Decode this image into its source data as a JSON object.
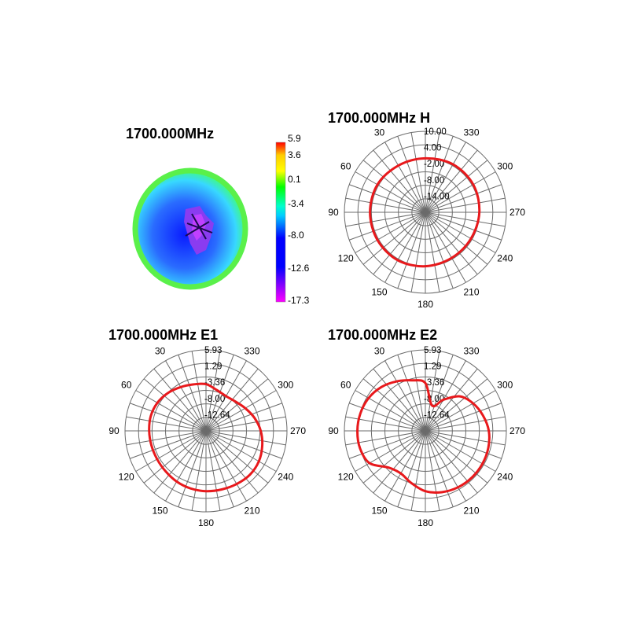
{
  "chart_data": [
    {
      "type": "heatmap",
      "title": "1700.000MHz",
      "colorbar": {
        "labels": [
          "5.9",
          "3.6",
          "0.1",
          "-3.4",
          "-8.0",
          "-12.6",
          "-17.3"
        ],
        "values": [
          5.9,
          3.6,
          0.1,
          -3.4,
          -8.0,
          -12.6,
          -17.3
        ],
        "colors": [
          "#ff0000",
          "#ffff00",
          "#00ff00",
          "#00ffff",
          "#0000ff",
          "#ff00ff"
        ]
      }
    },
    {
      "type": "polar",
      "title": "1700.000MHz  H",
      "angle_labels": [
        "30",
        "60",
        "90",
        "120",
        "150",
        "180",
        "210",
        "240",
        "270",
        "300",
        "330"
      ],
      "radial_labels": [
        "10.00",
        "4.00",
        "-2.00",
        "-8.00",
        "-14.00"
      ],
      "rlim": [
        -20,
        10
      ],
      "trace_color": "#e8191c",
      "series": [
        {
          "theta": [
            0,
            30,
            60,
            90,
            120,
            150,
            180,
            210,
            240,
            270,
            300,
            330
          ],
          "r": [
            0.0,
            0.0,
            0.5,
            0.5,
            0.5,
            0.5,
            0.0,
            -0.5,
            -0.5,
            0.0,
            0.5,
            0.5
          ]
        }
      ]
    },
    {
      "type": "polar",
      "title": "1700.000MHz  E1",
      "angle_labels": [
        "30",
        "60",
        "90",
        "120",
        "150",
        "180",
        "210",
        "240",
        "270",
        "300",
        "330"
      ],
      "radial_labels": [
        "5.93",
        "1.29",
        "-3.36",
        "-8.00",
        "-12.64"
      ],
      "rlim": [
        -17.3,
        5.93
      ],
      "trace_color": "#e8191c",
      "series": [
        {
          "theta": [
            0,
            15,
            30,
            45,
            60,
            75,
            90,
            105,
            120,
            135,
            150,
            165,
            180,
            195,
            210,
            225,
            240,
            255,
            270,
            285,
            300,
            315,
            330,
            345
          ],
          "r": [
            -3.9,
            -3.5,
            -2.8,
            -1.9,
            -1.2,
            -0.9,
            -1.0,
            -1.1,
            -1.1,
            -0.9,
            -0.5,
            -0.2,
            0.0,
            0.1,
            0.3,
            0.5,
            0.2,
            -0.6,
            -1.6,
            -2.9,
            -4.3,
            -5.4,
            -5.8,
            -5.2
          ]
        }
      ]
    },
    {
      "type": "polar",
      "title": "1700.000MHz  E2",
      "angle_labels": [
        "30",
        "60",
        "90",
        "120",
        "150",
        "180",
        "210",
        "240",
        "270",
        "300",
        "330"
      ],
      "radial_labels": [
        "5.93",
        "1.29",
        "-3.36",
        "-8.00",
        "-12.64"
      ],
      "rlim": [
        -17.3,
        5.93
      ],
      "trace_color": "#e8191c",
      "series": [
        {
          "theta": [
            0,
            15,
            30,
            45,
            60,
            75,
            90,
            105,
            120,
            135,
            150,
            165,
            180,
            195,
            210,
            225,
            240,
            255,
            270,
            285,
            300,
            315,
            330,
            345
          ],
          "r": [
            -3.6,
            -2.3,
            -0.9,
            0.5,
            1.5,
            2.0,
            2.2,
            2.1,
            1.2,
            -2.4,
            -3.2,
            -1.8,
            0.0,
            0.9,
            1.4,
            1.6,
            1.6,
            1.4,
            0.9,
            -0.2,
            -1.5,
            -3.3,
            -7.0,
            -9.8
          ]
        }
      ]
    }
  ]
}
